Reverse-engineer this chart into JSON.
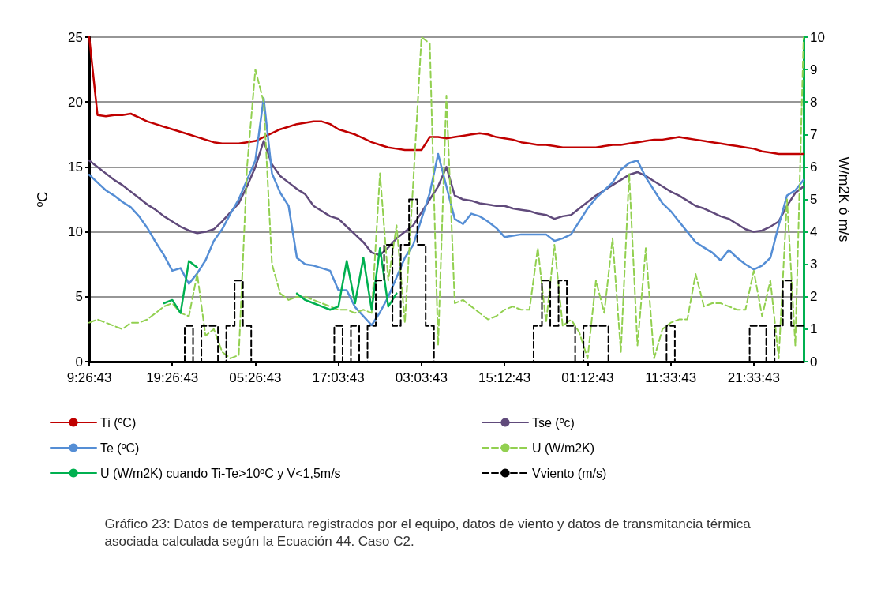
{
  "chart_data": {
    "type": "line",
    "ylabel": "ºC",
    "y2label": "W/m2K ó m/s",
    "categories": [
      "9:26:43",
      null,
      null,
      null,
      null,
      null,
      null,
      null,
      null,
      null,
      "19:26:43",
      null,
      null,
      null,
      null,
      null,
      null,
      null,
      null,
      null,
      "05:26:43",
      null,
      null,
      null,
      null,
      null,
      null,
      null,
      null,
      null,
      "17:03:43",
      null,
      null,
      null,
      null,
      null,
      null,
      null,
      null,
      null,
      "03:03:43",
      null,
      null,
      null,
      null,
      null,
      null,
      null,
      null,
      null,
      "15:12:43",
      null,
      null,
      null,
      null,
      null,
      null,
      null,
      null,
      null,
      "01:12:43",
      null,
      null,
      null,
      null,
      null,
      null,
      null,
      null,
      null,
      "11:33:43",
      null,
      null,
      null,
      null,
      null,
      null,
      null,
      null,
      null,
      "21:33:43",
      null,
      null,
      null,
      null,
      null,
      null
    ],
    "ylim": [
      0,
      25
    ],
    "yticks": [
      0,
      5,
      10,
      15,
      20,
      25
    ],
    "y2lim": [
      0,
      10
    ],
    "y2ticks": [
      0,
      1,
      2,
      3,
      4,
      5,
      6,
      7,
      8,
      9,
      10
    ],
    "grid": "y",
    "legend": "bottom",
    "marker": "none",
    "line_style": "solid",
    "series": [
      {
        "name": "Ti (ºC)",
        "color": "#c00000",
        "values": [
          25,
          19,
          18.9,
          19,
          19,
          19.1,
          18.8,
          18.5,
          18.3,
          18.1,
          17.9,
          17.7,
          17.5,
          17.3,
          17.1,
          16.9,
          16.8,
          16.8,
          16.8,
          16.9,
          17,
          17.3,
          17.6,
          17.9,
          18.1,
          18.3,
          18.4,
          18.5,
          18.5,
          18.3,
          17.9,
          17.7,
          17.5,
          17.2,
          16.9,
          16.7,
          16.5,
          16.4,
          16.3,
          16.3,
          16.3,
          17.3,
          17.3,
          17.2,
          17.3,
          17.4,
          17.5,
          17.6,
          17.5,
          17.3,
          17.2,
          17.1,
          16.9,
          16.8,
          16.7,
          16.7,
          16.6,
          16.5,
          16.5,
          16.5,
          16.5,
          16.5,
          16.6,
          16.7,
          16.7,
          16.8,
          16.9,
          17,
          17.1,
          17.1,
          17.2,
          17.3,
          17.2,
          17.1,
          17,
          16.9,
          16.8,
          16.7,
          16.6,
          16.5,
          16.4,
          16.2,
          16.1,
          16,
          16,
          16,
          16
        ]
      },
      {
        "name": "Tse (ºc)",
        "color": "#604a7b",
        "values": [
          15.5,
          15,
          14.5,
          14,
          13.6,
          13.1,
          12.6,
          12.1,
          11.7,
          11.2,
          10.8,
          10.4,
          10.1,
          9.9,
          10,
          10.2,
          10.8,
          11.5,
          12.2,
          13.5,
          15,
          17,
          15.2,
          14.3,
          13.8,
          13.3,
          12.9,
          12,
          11.6,
          11.2,
          11,
          10.4,
          9.8,
          9.2,
          8.4,
          8.2,
          8.8,
          9.5,
          10,
          10.5,
          11.5,
          12.5,
          13.5,
          15,
          12.8,
          12.5,
          12.4,
          12.2,
          12.1,
          12,
          12,
          11.8,
          11.7,
          11.6,
          11.4,
          11.3,
          11,
          11.2,
          11.3,
          11.8,
          12.3,
          12.8,
          13.2,
          13.6,
          14,
          14.4,
          14.6,
          14.3,
          13.9,
          13.5,
          13.1,
          12.8,
          12.4,
          12,
          11.8,
          11.5,
          11.2,
          11,
          10.6,
          10.2,
          10,
          10.1,
          10.4,
          10.8,
          12,
          13,
          13.5
        ]
      },
      {
        "name": "Te (ºC)",
        "color": "#558ed5",
        "values": [
          14.4,
          13.8,
          13.2,
          12.8,
          12.3,
          11.9,
          11.2,
          10.3,
          9.2,
          8.2,
          7,
          7.2,
          6,
          6.8,
          7.8,
          9.3,
          10.2,
          11.4,
          12.5,
          14,
          15.5,
          20.3,
          14.5,
          13,
          12,
          8,
          7.5,
          7.4,
          7.2,
          7,
          5.5,
          5.5,
          4.2,
          3.5,
          2.8,
          3.8,
          5,
          6.5,
          8,
          9,
          11,
          13,
          16,
          13.5,
          11,
          10.6,
          11.4,
          11.2,
          10.8,
          10.3,
          9.6,
          9.7,
          9.8,
          9.8,
          9.8,
          9.8,
          9.3,
          9.5,
          9.8,
          10.8,
          11.8,
          12.6,
          13.2,
          13.8,
          14.8,
          15.3,
          15.5,
          14.2,
          13.2,
          12.2,
          11.6,
          10.8,
          10,
          9.2,
          8.8,
          8.4,
          7.8,
          8.6,
          8,
          7.5,
          7.1,
          7.4,
          8,
          10.5,
          12.8,
          13.2,
          14
        ]
      },
      {
        "name": "U (W/m2K)",
        "color": "#92d050",
        "axis": "y2",
        "line_style": "dashed",
        "values": [
          1.2,
          1.3,
          1.2,
          1.1,
          1,
          1.2,
          1.2,
          1.3,
          1.5,
          1.7,
          1.8,
          1.5,
          1.4,
          2.7,
          0.8,
          1,
          0.3,
          0.1,
          0.2,
          6,
          9,
          8,
          3,
          2.1,
          1.9,
          2,
          2,
          1.9,
          1.8,
          1.7,
          1.6,
          1.6,
          1.5,
          1.6,
          1.5,
          5.8,
          2.5,
          4.2,
          1.2,
          5.5,
          10,
          9.8,
          0.5,
          8.2,
          1.8,
          1.9,
          1.7,
          1.5,
          1.3,
          1.4,
          1.6,
          1.7,
          1.6,
          1.6,
          3.5,
          1.2,
          3.6,
          1.1,
          1.3,
          0.9,
          0.1,
          2.5,
          1.5,
          3.8,
          0.3,
          5.8,
          0.5,
          3.5,
          0.1,
          1,
          1.2,
          1.3,
          1.3,
          2.7,
          1.7,
          1.8,
          1.8,
          1.7,
          1.6,
          1.6,
          2.8,
          1.4,
          2.5,
          0.1,
          5,
          0.5,
          10
        ]
      },
      {
        "name": "U (W/m2K) cuando Ti-Te>10ºC y V<1,5m/s",
        "color": "#00b050",
        "axis": "y2",
        "values": [
          null,
          null,
          null,
          null,
          null,
          null,
          null,
          null,
          null,
          1.8,
          1.9,
          1.5,
          3.1,
          2.9,
          null,
          null,
          null,
          null,
          null,
          null,
          null,
          null,
          null,
          null,
          null,
          2.1,
          1.9,
          1.8,
          1.7,
          1.6,
          1.7,
          3.1,
          1.8,
          3.2,
          1.6,
          3.5,
          1.7,
          2.1,
          null,
          null,
          null,
          null,
          null,
          null,
          null,
          null,
          null,
          null,
          null,
          null,
          null,
          null,
          null,
          null,
          null,
          null,
          null,
          null,
          null,
          null,
          null,
          null,
          null,
          null,
          null,
          null,
          null,
          null,
          null,
          null,
          null,
          null,
          null,
          null,
          null,
          null,
          null,
          null,
          null,
          null,
          null,
          null,
          null,
          null,
          null,
          null,
          null
        ]
      },
      {
        "name": "Vviento (m/s)",
        "color": "#000000",
        "axis": "y2",
        "type": "step",
        "line_style": "dashed",
        "values": [
          0,
          0,
          0,
          0,
          0,
          0,
          0,
          0,
          0,
          0,
          0,
          0,
          1.1,
          0,
          1.1,
          1.1,
          0,
          1.1,
          2.5,
          1.1,
          0,
          0,
          0,
          0,
          0,
          0,
          0,
          0,
          0,
          0,
          1.1,
          0,
          1.1,
          0,
          1.1,
          2.5,
          3.6,
          1.1,
          3.6,
          5,
          3.6,
          1.1,
          0,
          0,
          0,
          0,
          0,
          0,
          0,
          0,
          0,
          0,
          0,
          0,
          1.1,
          2.5,
          1.1,
          2.5,
          1.1,
          0,
          1.1,
          1.1,
          1.1,
          0,
          0,
          0,
          0,
          0,
          0,
          0,
          1.1,
          0,
          0,
          0,
          0,
          0,
          0,
          0,
          0,
          0,
          1.1,
          1.1,
          0,
          1.1,
          2.5,
          1.1,
          1.1
        ]
      }
    ],
    "annotations": [
      "Gráfico 23: Datos de temperatura registrados por el equipo, datos de viento y datos de transmitancia térmica asociada calculada según la Ecuación 44. Caso C2."
    ]
  }
}
